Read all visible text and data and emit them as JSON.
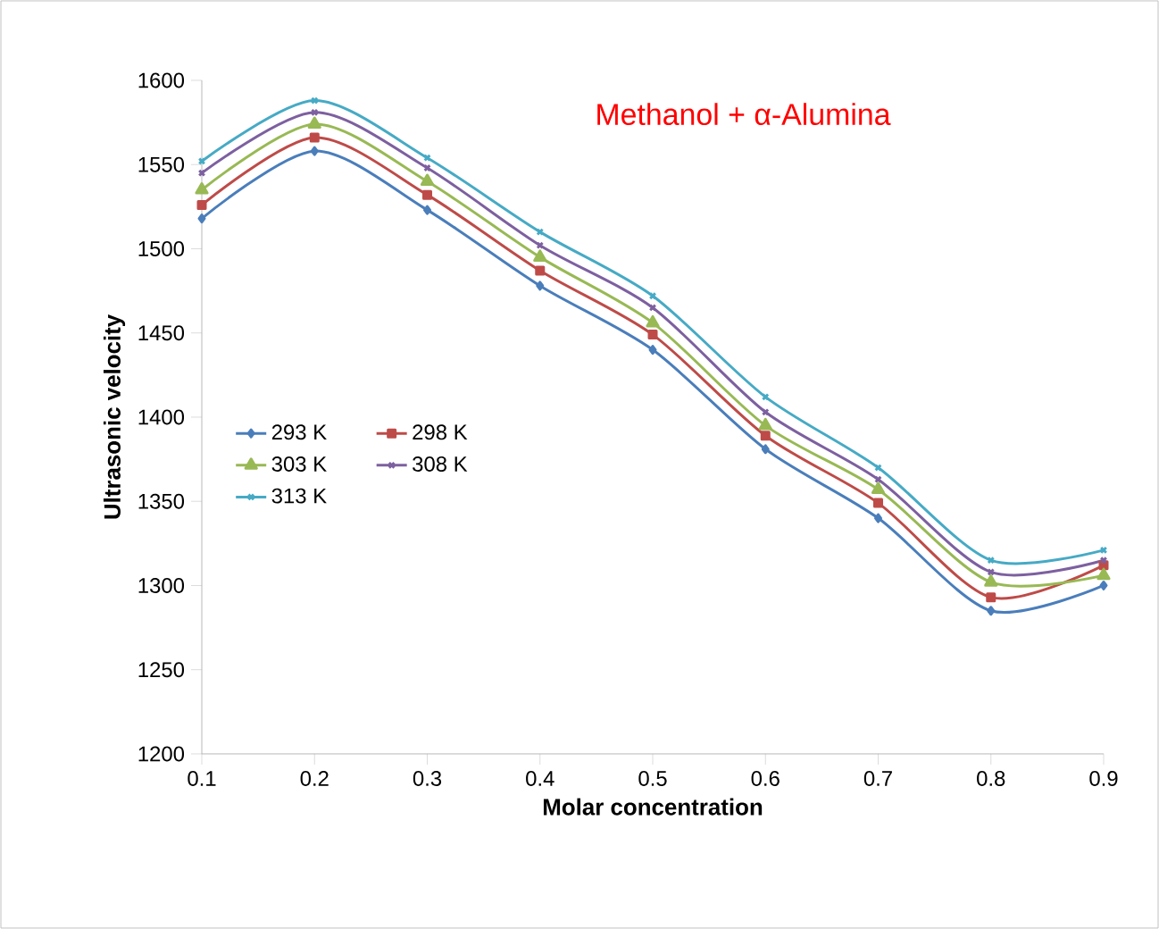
{
  "chart_data": {
    "type": "line",
    "title": "Methanol + α-Alumina",
    "xlabel": "Molar concentration",
    "ylabel": "Ultrasonic  velocity",
    "x": [
      0.1,
      0.2,
      0.3,
      0.4,
      0.5,
      0.6,
      0.7,
      0.8,
      0.9
    ],
    "series": [
      {
        "name": "293 K",
        "color": "#4a7ebb",
        "marker": "diamond",
        "values": [
          1518,
          1558,
          1523,
          1478,
          1440,
          1381,
          1340,
          1285,
          1300
        ]
      },
      {
        "name": "298 K",
        "color": "#be4b48",
        "marker": "square",
        "values": [
          1526,
          1566,
          1532,
          1487,
          1449,
          1389,
          1349,
          1293,
          1312
        ]
      },
      {
        "name": "303 K",
        "color": "#98b954",
        "marker": "triangle",
        "values": [
          1535,
          1574,
          1540,
          1495,
          1456,
          1395,
          1357,
          1302,
          1306
        ]
      },
      {
        "name": "308 K",
        "color": "#7d60a0",
        "marker": "cross",
        "values": [
          1545,
          1581,
          1548,
          1502,
          1465,
          1403,
          1363,
          1308,
          1315
        ]
      },
      {
        "name": "313 K",
        "color": "#46aac5",
        "marker": "cross",
        "values": [
          1552,
          1588,
          1554,
          1510,
          1472,
          1412,
          1370,
          1315,
          1321
        ]
      }
    ],
    "xlim": [
      0.1,
      0.9
    ],
    "xticks": [
      0.1,
      0.2,
      0.3,
      0.4,
      0.5,
      0.6,
      0.7,
      0.8,
      0.9
    ],
    "ylim": [
      1200,
      1600
    ],
    "yticks": [
      1200,
      1250,
      1300,
      1350,
      1400,
      1450,
      1500,
      1550,
      1600
    ],
    "grid": false,
    "legend": "left",
    "line_style": "solid"
  }
}
